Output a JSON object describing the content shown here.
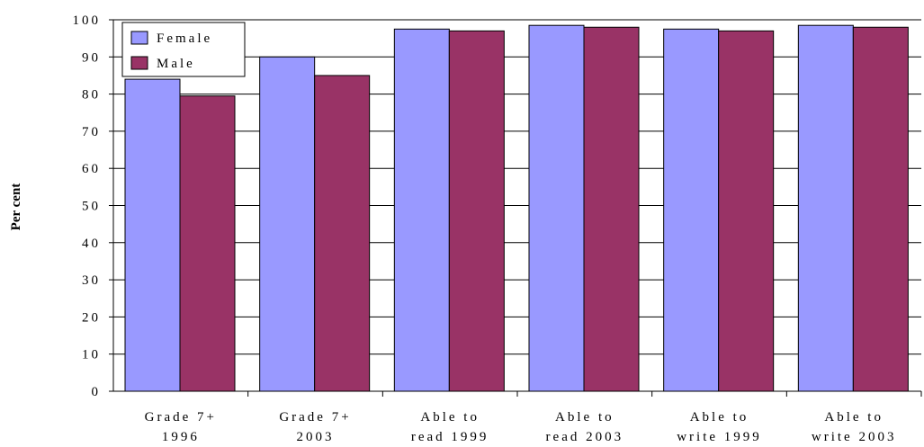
{
  "chart_data": {
    "type": "bar",
    "categories": [
      [
        "Grade 7+",
        "1996"
      ],
      [
        "Grade 7+",
        "2003"
      ],
      [
        "Able to",
        "read 1999"
      ],
      [
        "Able to",
        "read 2003"
      ],
      [
        "Able to",
        "write 1999"
      ],
      [
        "Able to",
        "write 2003"
      ]
    ],
    "series": [
      {
        "name": "Female",
        "color": "#9999ff",
        "values": [
          84,
          90,
          97.5,
          98.5,
          97.5,
          98.5
        ]
      },
      {
        "name": "Male",
        "color": "#993366",
        "values": [
          79.5,
          85,
          97,
          98,
          97,
          98
        ]
      }
    ],
    "ylabel": "Per cent",
    "ylim": [
      0,
      100
    ],
    "yticks": [
      0,
      10,
      20,
      30,
      40,
      50,
      60,
      70,
      80,
      90,
      100
    ],
    "grid": true,
    "legend": "top-left"
  }
}
